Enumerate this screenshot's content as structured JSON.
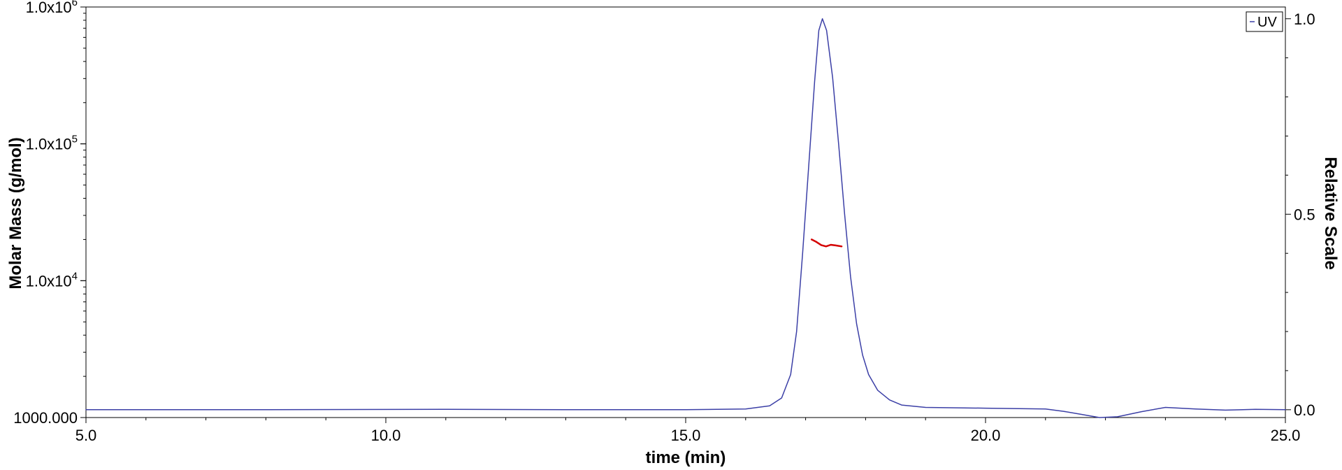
{
  "chart_data": {
    "type": "line",
    "xlabel": "time (min)",
    "ylabel": "Molar Mass (g/mol)",
    "y2label": "Relative Scale",
    "xlim": [
      5.0,
      25.0
    ],
    "x_ticks": [
      "5.0",
      "10.0",
      "15.0",
      "20.0",
      "25.0"
    ],
    "y_left_scale": "log",
    "y_left_lim": [
      1000,
      1000000
    ],
    "y_left_ticks": [
      {
        "value": 1000,
        "base": "1000.000",
        "exp": ""
      },
      {
        "value": 10000,
        "base": "1.0x10",
        "exp": "4"
      },
      {
        "value": 100000,
        "base": "1.0x10",
        "exp": "5"
      },
      {
        "value": 1000000,
        "base": "1.0x10",
        "exp": "6"
      }
    ],
    "y_right_lim": [
      -0.02,
      1.03
    ],
    "y_right_ticks": [
      "0.0",
      "0.5",
      "1.0"
    ],
    "legend": {
      "position": "top-right",
      "entries": [
        "UV"
      ]
    },
    "colors": {
      "uv": "#3b3fa6",
      "molar_mass": "#d40000",
      "axis": "#000000"
    },
    "series": [
      {
        "name": "UV",
        "axis": "right",
        "x": [
          5.0,
          8.0,
          11.0,
          13.0,
          15.0,
          16.0,
          16.4,
          16.6,
          16.75,
          16.85,
          16.95,
          17.05,
          17.15,
          17.22,
          17.28,
          17.35,
          17.45,
          17.55,
          17.65,
          17.75,
          17.85,
          17.95,
          18.05,
          18.2,
          18.4,
          18.6,
          19.0,
          20.0,
          21.0,
          21.3,
          21.6,
          21.9,
          22.2,
          22.6,
          23.0,
          23.5,
          24.0,
          24.5,
          25.0
        ],
        "values": [
          0.0,
          0.0,
          0.001,
          0.0,
          0.0,
          0.002,
          0.01,
          0.03,
          0.09,
          0.2,
          0.4,
          0.62,
          0.84,
          0.97,
          1.0,
          0.97,
          0.85,
          0.68,
          0.5,
          0.34,
          0.22,
          0.14,
          0.09,
          0.05,
          0.025,
          0.012,
          0.006,
          0.004,
          0.002,
          -0.004,
          -0.012,
          -0.02,
          -0.018,
          -0.005,
          0.006,
          0.002,
          -0.001,
          0.001,
          0.0
        ]
      },
      {
        "name": "",
        "axis": "left",
        "x": [
          17.1,
          17.18,
          17.26,
          17.34,
          17.42,
          17.5,
          17.6
        ],
        "values": [
          20000,
          19200,
          18200,
          17800,
          18300,
          18100,
          17800
        ]
      }
    ]
  }
}
